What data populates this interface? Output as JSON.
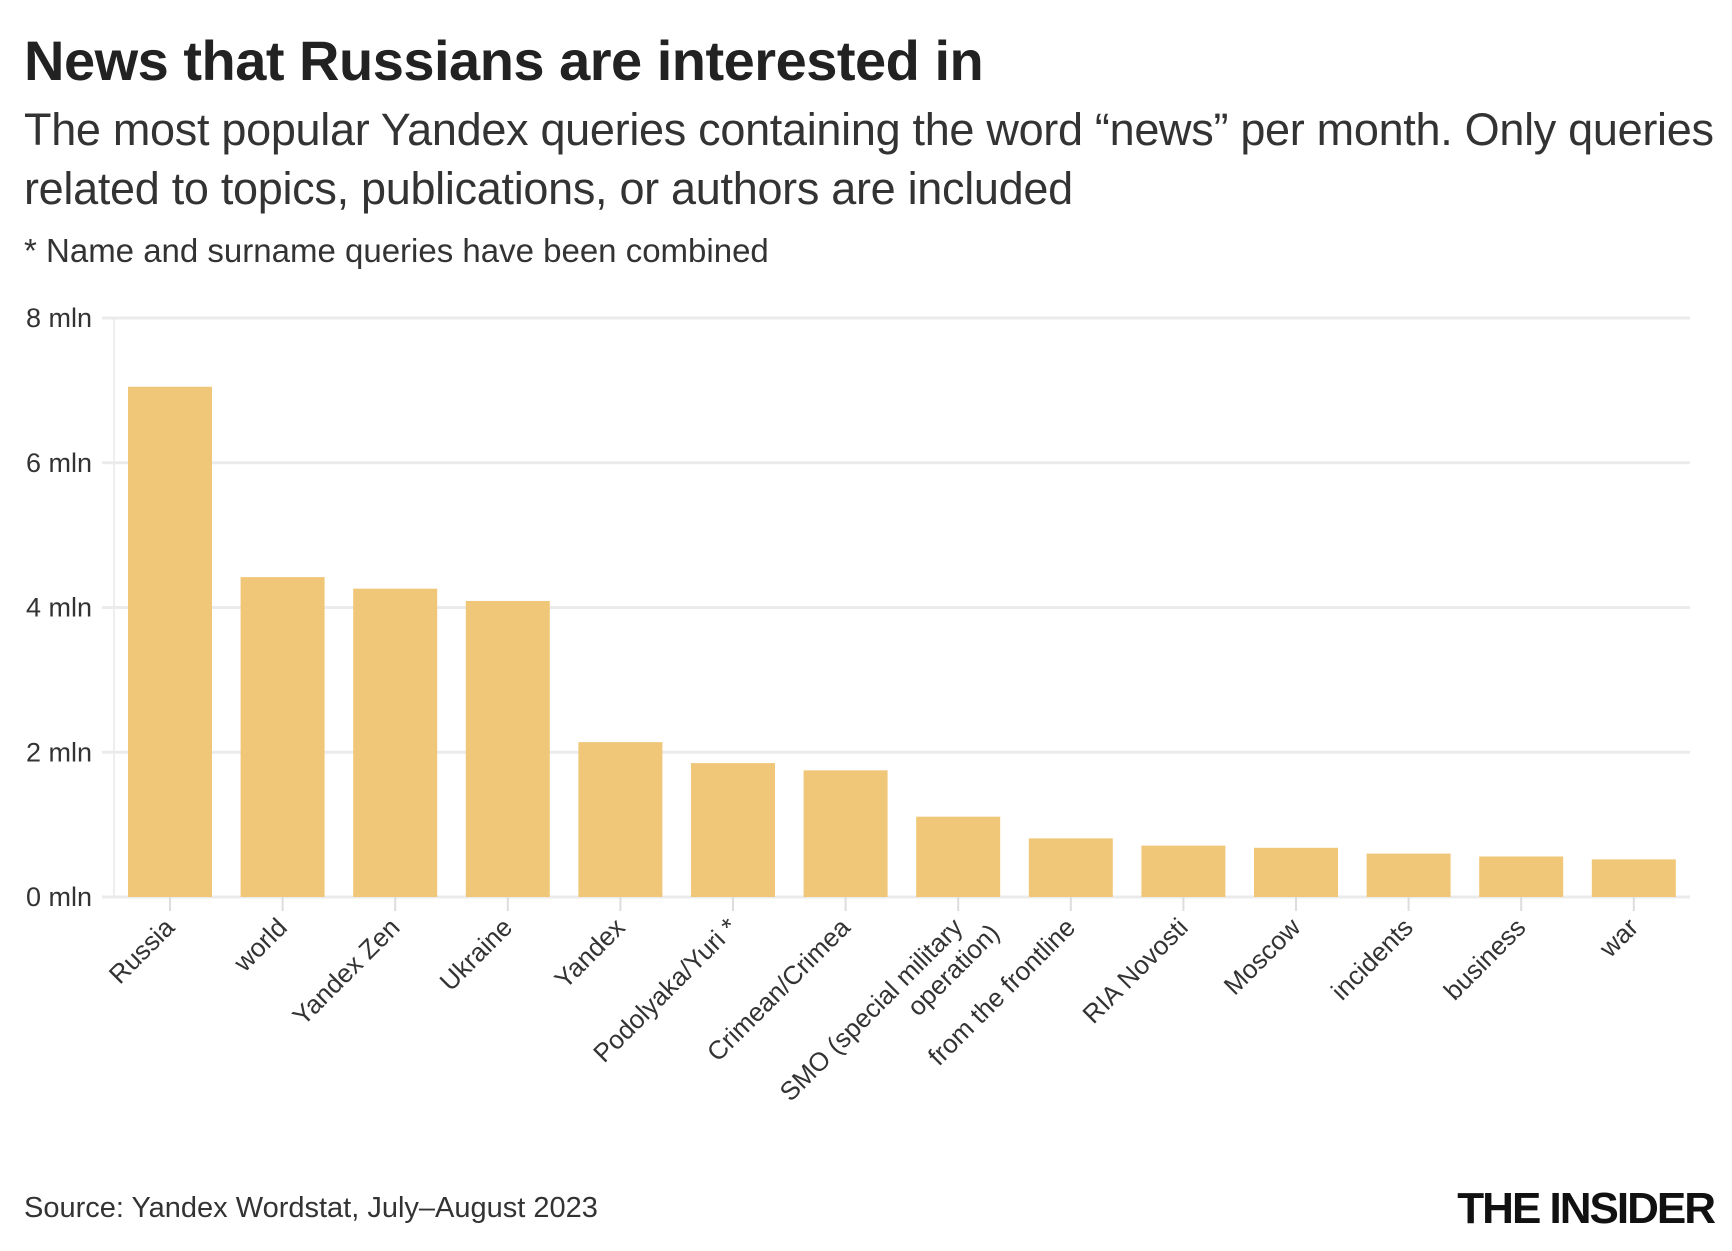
{
  "title": "News that Russians are interested in",
  "subtitle": "The most popular Yandex queries containing the word “news” per month. Only queries related to topics, publications, or authors are included",
  "note": "* Name and surname queries have been combined",
  "source": "Source: Yandex Wordstat, July–August 2023",
  "logo": "THE INSIDER",
  "chart_data": {
    "type": "bar",
    "categories": [
      "Russia",
      "world",
      "Yandex Zen",
      "Ukraine",
      "Yandex",
      "Podolyaka/Yuri *",
      "Crimean/Crimea",
      "SMO (special military operation)",
      "from the frontline",
      "RIA Novosti",
      "Moscow",
      "incidents",
      "business",
      "war"
    ],
    "values": [
      7.05,
      4.42,
      4.26,
      4.09,
      2.14,
      1.85,
      1.75,
      1.11,
      0.81,
      0.71,
      0.68,
      0.6,
      0.56,
      0.52
    ],
    "unit": "mln",
    "ylim": [
      0,
      8
    ],
    "yticks": [
      0,
      2,
      4,
      6,
      8
    ],
    "ytick_labels": [
      "0 mln",
      "2 mln",
      "4 mln",
      "6 mln",
      "8 mln"
    ],
    "grid": true,
    "bar_color": "#f0c778"
  }
}
